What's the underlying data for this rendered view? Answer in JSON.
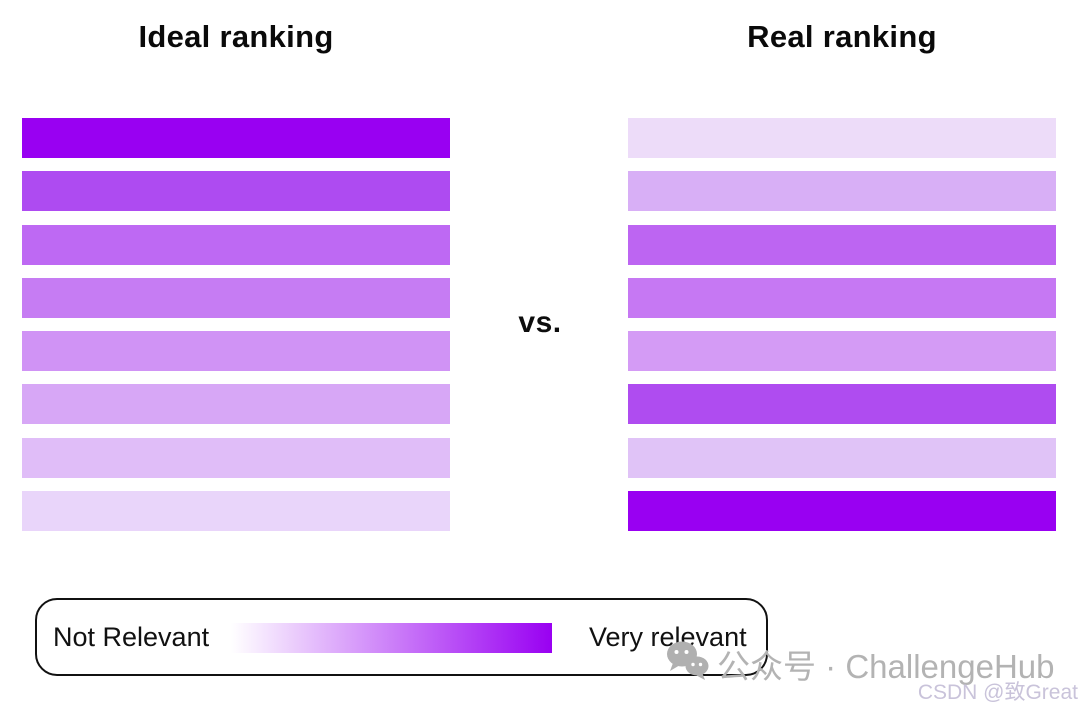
{
  "left_panel": {
    "title": "Ideal ranking",
    "bars": [
      {
        "position": 1,
        "color": "#9900F2",
        "relevance_rank": 1
      },
      {
        "position": 2,
        "color": "#AE4BF1",
        "relevance_rank": 2
      },
      {
        "position": 3,
        "color": "#BE69F3",
        "relevance_rank": 3
      },
      {
        "position": 4,
        "color": "#C67CF3",
        "relevance_rank": 4
      },
      {
        "position": 5,
        "color": "#D093F5",
        "relevance_rank": 5
      },
      {
        "position": 6,
        "color": "#D7A7F6",
        "relevance_rank": 6
      },
      {
        "position": 7,
        "color": "#E0BDF8",
        "relevance_rank": 7
      },
      {
        "position": 8,
        "color": "#E9D5FA",
        "relevance_rank": 8
      }
    ]
  },
  "center": {
    "vs_label": "vs."
  },
  "right_panel": {
    "title": "Real ranking",
    "bars": [
      {
        "position": 1,
        "color": "#EDDCF9",
        "relevance_rank": 8
      },
      {
        "position": 2,
        "color": "#D8AFF6",
        "relevance_rank": 6
      },
      {
        "position": 3,
        "color": "#BD65F2",
        "relevance_rank": 3
      },
      {
        "position": 4,
        "color": "#C678F3",
        "relevance_rank": 4
      },
      {
        "position": 5,
        "color": "#D49BF5",
        "relevance_rank": 5
      },
      {
        "position": 6,
        "color": "#AF4CF0",
        "relevance_rank": 2
      },
      {
        "position": 7,
        "color": "#E0C3F7",
        "relevance_rank": 7
      },
      {
        "position": 8,
        "color": "#9900F2",
        "relevance_rank": 1
      }
    ]
  },
  "legend": {
    "not_relevant_label": "Not Relevant",
    "very_relevant_label": "Very relevant",
    "gradient_start": "#FFFFFF",
    "gradient_end": "#9900F2"
  },
  "watermark": {
    "wechat_label": "公众号 · ChallengeHub",
    "csdn_label": "CSDN @致Great",
    "main_color": "#b3b3b3",
    "csdn_color": "#c9c3da"
  },
  "chart_data": {
    "type": "heatmap",
    "title": "Ideal ranking vs. Real ranking",
    "description": "Two columns of 8 horizontal bars color-coded by relevance; dark purple = very relevant, pale lavender = not relevant",
    "columns": [
      "Ideal ranking",
      "Real ranking"
    ],
    "ideal_ranking_relevance_order": [
      1,
      2,
      3,
      4,
      5,
      6,
      7,
      8
    ],
    "real_ranking_relevance_order": [
      8,
      6,
      3,
      4,
      5,
      2,
      7,
      1
    ],
    "legend": {
      "left": "Not Relevant",
      "right": "Very relevant"
    }
  }
}
